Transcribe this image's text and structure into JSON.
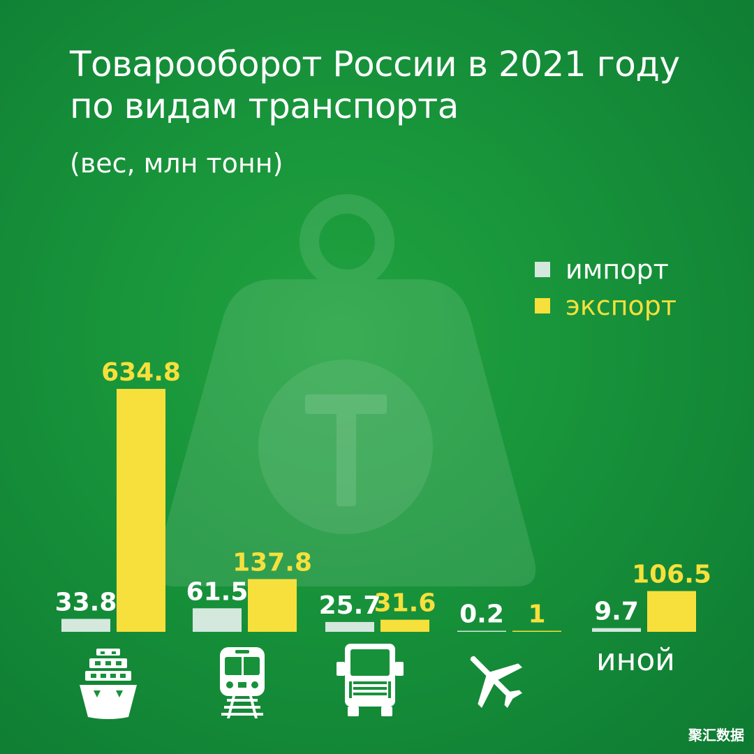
{
  "colors": {
    "import": "#d4e8de",
    "export": "#f7e03c",
    "text": "#ffffff"
  },
  "legend": {
    "import_label": "импорт",
    "export_label": "экспорт"
  },
  "chart_data": {
    "type": "bar",
    "title": "Товарооборот России в 2021 году по видам транспорта",
    "title_lines": [
      "Товарооборот России в 2021 году",
      "по видам транспорта"
    ],
    "subtitle": "(вес, млн тонн)",
    "categories": [
      "sea",
      "rail",
      "road",
      "air",
      "иной"
    ],
    "category_icons": [
      "ship-icon",
      "train-icon",
      "truck-icon",
      "airplane-icon",
      ""
    ],
    "category_labels": [
      "",
      "",
      "",
      "",
      "иной"
    ],
    "series": [
      {
        "name": "импорт",
        "values": [
          33.8,
          61.5,
          25.7,
          0.2,
          9.7
        ],
        "labels": [
          "33.8",
          "61.5",
          "25.7",
          "0.2",
          "9.7"
        ]
      },
      {
        "name": "экспорт",
        "values": [
          634.8,
          137.8,
          31.6,
          1,
          106.5
        ],
        "labels": [
          "634.8",
          "137.8",
          "31.6",
          "1",
          "106.5"
        ]
      }
    ],
    "ylim": [
      0,
      634.8
    ],
    "grid": false,
    "legend_position": "top-right"
  },
  "watermark": "聚汇数据"
}
